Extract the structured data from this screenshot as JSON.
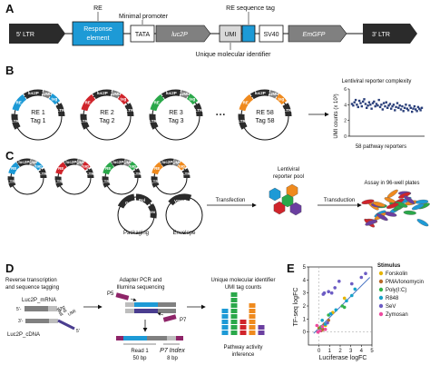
{
  "panels": {
    "A": "A",
    "B": "B",
    "C": "C",
    "D": "D",
    "E": "E"
  },
  "panelA": {
    "ltr5": "5' LTR",
    "ltr3": "3' LTR",
    "re_label": "RE",
    "response_element": [
      "Response",
      "element"
    ],
    "minimal_promoter": "Minimal promoter",
    "re_sequence_tag": "RE sequence tag",
    "tata": "TATA",
    "luc2p": "luc2P",
    "umi": "UMI",
    "sv40": "SV40",
    "emgfp": "EmGFP",
    "umi_caption": "Unique molecular identifier"
  },
  "panelB": {
    "plasmids": [
      {
        "re": "RE 1",
        "tag": "Tag 1",
        "color": "#1d9ad6"
      },
      {
        "re": "RE 2",
        "tag": "Tag 2",
        "color": "#d0242b"
      },
      {
        "re": "RE 3",
        "tag": "Tag 3",
        "color": "#2aa84a"
      },
      {
        "re": "RE 58",
        "tag": "Tag 58",
        "color": "#ef8a1e"
      }
    ],
    "ellipsis": "• • •",
    "seg": {
      "re": "RE",
      "luc2p": "luc2P",
      "umi": "UMI",
      "tag": "tag",
      "ltr": "LTR"
    },
    "chart_title": "Lentiviral reporter complexity",
    "ylabel": "UMI counts (x 10³)",
    "xlabel": "58 pathway reporters"
  },
  "chart_data": {
    "type": "scatter",
    "title": "Lentiviral reporter complexity",
    "xlabel": "58 pathway reporters",
    "ylabel": "UMI counts (x 10³)",
    "ylim": [
      0,
      6
    ],
    "yticks": [
      0,
      2,
      4,
      6
    ],
    "x": [
      1,
      2,
      3,
      4,
      5,
      6,
      7,
      8,
      9,
      10,
      11,
      12,
      13,
      14,
      15,
      16,
      17,
      18,
      19,
      20,
      21,
      22,
      23,
      24,
      25,
      26,
      27,
      28,
      29,
      30,
      31,
      32,
      33,
      34,
      35,
      36,
      37,
      38,
      39,
      40,
      41,
      42,
      43,
      44,
      45,
      46,
      47,
      48,
      49,
      50,
      51,
      52,
      53,
      54,
      55,
      56,
      57,
      58
    ],
    "y": [
      4.1,
      3.9,
      4.3,
      4.6,
      4.0,
      3.7,
      4.5,
      4.2,
      3.8,
      4.4,
      4.7,
      4.1,
      3.6,
      3.9,
      4.3,
      4.0,
      3.5,
      4.2,
      4.4,
      3.8,
      4.1,
      3.9,
      4.6,
      3.7,
      4.0,
      3.4,
      4.2,
      3.8,
      4.3,
      3.6,
      3.9,
      4.1,
      3.5,
      3.8,
      4.0,
      3.3,
      3.7,
      4.2,
      3.6,
      3.9,
      3.4,
      3.8,
      3.2,
      3.6,
      4.0,
      3.5,
      3.3,
      3.9,
      3.6,
      3.1,
      3.5,
      3.8,
      3.4,
      3.2,
      3.7,
      3.5,
      3.3,
      3.6
    ]
  },
  "panelC": {
    "packaging": "Packaging",
    "envelope": "Envelope",
    "seg_gag": "Gag",
    "seg_pol": "Pol",
    "seg_rev": "Rev",
    "seg_vsvg": "VSV-G",
    "transfection": "Transfection",
    "pool_title": [
      "Lentiviral",
      "reporter pool"
    ],
    "transduction": "Transduction",
    "assay": "Assay in 96-well plates",
    "pool_colors": [
      "#1d9ad6",
      "#2aa84a",
      "#d0242b",
      "#ef8a1e",
      "#6b3fa0"
    ]
  },
  "panelD": {
    "rt_title": [
      "Reverse transcription",
      "and sequence tagging"
    ],
    "mrna": "Luc2P_mRNA",
    "cdna": "Luc2P_cDNA",
    "well_tag": [
      "Well",
      "tag"
    ],
    "umi": "UMI",
    "p5": "5'-",
    "p3": "-3'",
    "p3b": "3'-",
    "p5b": "5'",
    "pcr_title": [
      "Adapter PCR and",
      "Illumina sequencing"
    ],
    "p5_label": "P5",
    "p7_label": "P7",
    "read1": "Read 1",
    "p7index": "P7 Index",
    "bp50": "50 bp",
    "bp8": "8 bp",
    "umi_title": [
      "Unique molecular identifier",
      "UMI tag counts"
    ],
    "pathway": [
      "Pathway activity",
      "inference"
    ],
    "bar_counts": [
      5,
      8,
      3,
      6,
      2
    ],
    "bar_colors": [
      "#1d9ad6",
      "#2aa84a",
      "#d0242b",
      "#ef8a1e",
      "#6b3fa0"
    ]
  },
  "panelE": {
    "chart_data": {
      "type": "scatter",
      "xlabel": "Luciferase logFC",
      "ylabel": "TF-seq logFC",
      "xlim": [
        -1,
        5
      ],
      "ylim": [
        -1,
        5
      ],
      "xticks": [
        0,
        1,
        2,
        3,
        4,
        5
      ],
      "yticks": [
        0,
        1,
        2,
        3,
        4,
        5
      ],
      "legend_title": "Stimulus",
      "series": [
        {
          "name": "Forskolin",
          "color": "#e6b400",
          "x": [
            0.1,
            0.3,
            1.3,
            2.4,
            0.6,
            0.2
          ],
          "y": [
            0.1,
            0.2,
            1.5,
            2.6,
            0.5,
            0.3
          ]
        },
        {
          "name": "PMA/Ionomycin",
          "color": "#b86a2a",
          "x": [
            0.0,
            0.2,
            0.5,
            0.9,
            -0.1,
            0.4
          ],
          "y": [
            0.3,
            0.1,
            0.6,
            0.9,
            0.0,
            0.2
          ]
        },
        {
          "name": "Poly(I:C)",
          "color": "#34b34a",
          "x": [
            0.2,
            0.9,
            2.2,
            2.4,
            0.1
          ],
          "y": [
            0.4,
            1.3,
            2.0,
            1.9,
            0.2
          ]
        },
        {
          "name": "R848",
          "color": "#17a2c8",
          "x": [
            0.3,
            1.1,
            1.6,
            2.6,
            3.1,
            3.4,
            0.6,
            0.1
          ],
          "y": [
            0.9,
            1.4,
            1.7,
            2.4,
            2.8,
            3.3,
            0.6,
            0.1
          ]
        },
        {
          "name": "SeV",
          "color": "#6c5cc4",
          "x": [
            0.5,
            0.9,
            1.2,
            1.9,
            1.5,
            4.0,
            4.4,
            0.4,
            3.1,
            0.8
          ],
          "y": [
            3.0,
            3.1,
            3.0,
            3.9,
            3.4,
            4.2,
            4.5,
            2.9,
            3.7,
            0.7
          ]
        },
        {
          "name": "Zymosan",
          "color": "#ee4ba0",
          "x": [
            -0.2,
            0.3,
            0.1,
            0.6,
            -0.1
          ],
          "y": [
            0.5,
            0.4,
            0.1,
            0.2,
            0.0
          ]
        }
      ],
      "trendline": true
    }
  }
}
